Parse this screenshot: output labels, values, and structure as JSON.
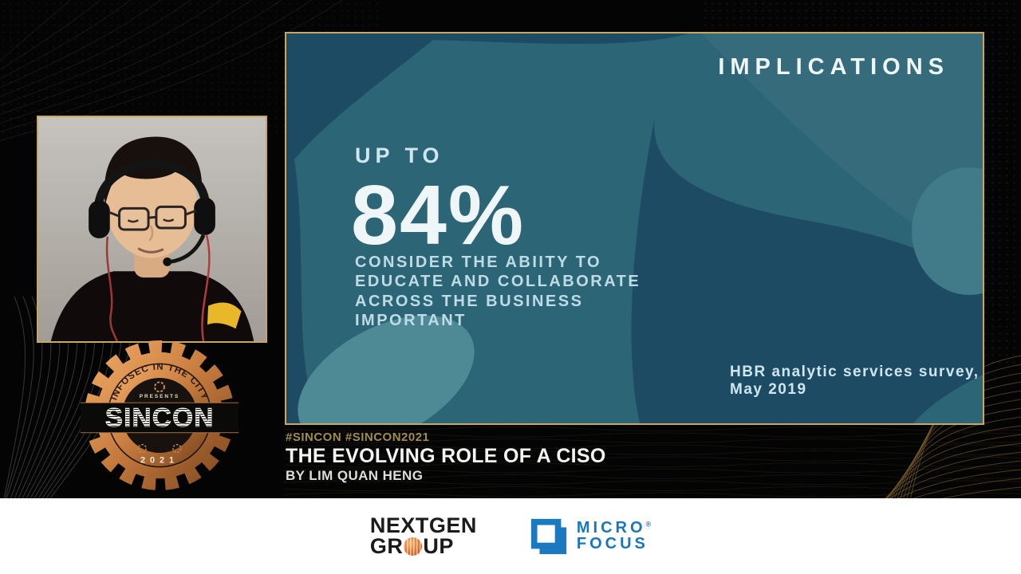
{
  "slide": {
    "title": "IMPLICATIONS",
    "kicker": "UP TO",
    "stat": "84%",
    "body": "CONSIDER THE ABIITY TO\nEDUCATE AND COLLABORATE\nACROSS THE BUSINESS\nIMPORTANT",
    "source": "HBR analytic services survey,\nMay 2019",
    "colors": {
      "base_teal": "#2c6575",
      "dark_blue": "#1d4b63",
      "light_blob": "#4e8a96",
      "gold_border": "#c9a85a"
    }
  },
  "caption": {
    "hashtags": "#SINCON #SINCON2021",
    "title": "THE EVOLVING ROLE OF A CISO",
    "byline": "BY LIM QUAN HENG",
    "hashtag_color": "#a18e4a"
  },
  "badge": {
    "ring_text": "INFOSEC IN THE CITY",
    "presents": "PRESENTS",
    "name": "SINCON",
    "year": "2021"
  },
  "sponsors": {
    "nextgen": {
      "line1": "NEXTGEN",
      "group_prefix": "GR",
      "group_suffix": "UP"
    },
    "microfocus": {
      "word1": "MICRO",
      "word2": "FOCUS",
      "registered": "®",
      "brand_color": "#1b75bc"
    }
  }
}
